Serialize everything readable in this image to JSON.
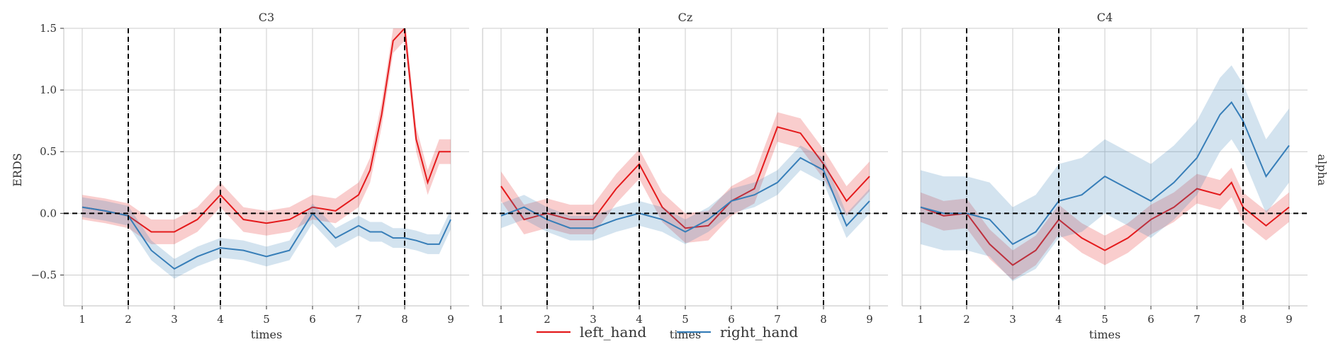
{
  "chart_data": {
    "type": "line",
    "xlabel": "times",
    "ylabel": "ERDS",
    "row_label": "alpha",
    "xlim": [
      0.6,
      9.4
    ],
    "ylim": [
      -0.75,
      1.5
    ],
    "x_ticks": [
      1,
      2,
      3,
      4,
      5,
      6,
      7,
      8,
      9
    ],
    "y_ticks": [
      -0.5,
      0.0,
      0.5,
      1.0,
      1.5
    ],
    "y_tick_labels": [
      "−0.5",
      "0.0",
      "0.5",
      "1.0",
      "1.5"
    ],
    "vlines": [
      2,
      4,
      8
    ],
    "hline": 0,
    "grid": true,
    "legend_position": "bottom-center",
    "colors": {
      "left_hand": "#e41a1c",
      "right_hand": "#377eb8"
    },
    "legend": [
      {
        "name": "left_hand",
        "color": "#e41a1c"
      },
      {
        "name": "right_hand",
        "color": "#377eb8"
      }
    ],
    "panels": [
      {
        "title": "C3",
        "x": [
          1.0,
          1.5,
          2.0,
          2.5,
          3.0,
          3.5,
          4.0,
          4.5,
          5.0,
          5.5,
          6.0,
          6.5,
          7.0,
          7.25,
          7.5,
          7.75,
          8.0,
          8.25,
          8.5,
          8.75,
          9.0
        ],
        "series": [
          {
            "name": "left_hand",
            "values": [
              0.05,
              0.02,
              -0.02,
              -0.15,
              -0.15,
              -0.05,
              0.15,
              -0.05,
              -0.08,
              -0.05,
              0.05,
              0.02,
              0.15,
              0.35,
              0.8,
              1.4,
              1.5,
              0.6,
              0.25,
              0.5,
              0.5
            ],
            "band": 0.1
          },
          {
            "name": "right_hand",
            "values": [
              0.05,
              0.02,
              -0.02,
              -0.3,
              -0.45,
              -0.35,
              -0.28,
              -0.3,
              -0.35,
              -0.3,
              0.0,
              -0.2,
              -0.1,
              -0.15,
              -0.15,
              -0.2,
              -0.2,
              -0.22,
              -0.25,
              -0.25,
              -0.05
            ],
            "band": 0.08
          }
        ]
      },
      {
        "title": "Cz",
        "x": [
          1.0,
          1.5,
          2.0,
          2.5,
          3.0,
          3.5,
          4.0,
          4.5,
          5.0,
          5.5,
          6.0,
          6.5,
          7.0,
          7.5,
          8.0,
          8.5,
          9.0
        ],
        "series": [
          {
            "name": "left_hand",
            "values": [
              0.22,
              -0.05,
              0.0,
              -0.05,
              -0.05,
              0.2,
              0.4,
              0.05,
              -0.12,
              -0.1,
              0.1,
              0.2,
              0.7,
              0.65,
              0.4,
              0.1,
              0.3
            ],
            "band": 0.12
          },
          {
            "name": "right_hand",
            "values": [
              -0.02,
              0.05,
              -0.05,
              -0.12,
              -0.12,
              -0.05,
              0.0,
              -0.05,
              -0.15,
              -0.05,
              0.1,
              0.15,
              0.25,
              0.45,
              0.35,
              -0.1,
              0.1
            ],
            "band": 0.1
          }
        ]
      },
      {
        "title": "C4",
        "x": [
          1.0,
          1.5,
          2.0,
          2.5,
          3.0,
          3.5,
          4.0,
          4.5,
          5.0,
          5.5,
          6.0,
          6.5,
          7.0,
          7.5,
          7.75,
          8.0,
          8.5,
          9.0
        ],
        "series": [
          {
            "name": "left_hand",
            "values": [
              0.05,
              -0.02,
              0.0,
              -0.25,
              -0.42,
              -0.3,
              -0.05,
              -0.2,
              -0.3,
              -0.2,
              -0.05,
              0.05,
              0.2,
              0.15,
              0.25,
              0.05,
              -0.1,
              0.05
            ],
            "band": 0.12
          },
          {
            "name": "right_hand",
            "values": [
              0.05,
              0.0,
              0.0,
              -0.05,
              -0.25,
              -0.15,
              0.1,
              0.15,
              0.3,
              0.2,
              0.1,
              0.25,
              0.45,
              0.8,
              0.9,
              0.75,
              0.3,
              0.55
            ],
            "band": 0.3
          }
        ]
      }
    ]
  }
}
